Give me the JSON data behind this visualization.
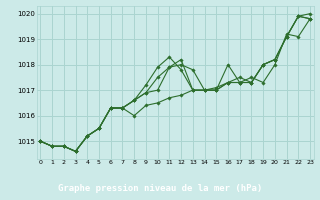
{
  "bg_color": "#cceae8",
  "grid_color": "#aad4d0",
  "line_color": "#2d6e2d",
  "marker_color": "#2d6e2d",
  "xlabel": "Graphe pression niveau de la mer (hPa)",
  "xlabel_bg": "#2d6e2d",
  "xlabel_fg": "#ffffff",
  "xlim": [
    -0.3,
    23.3
  ],
  "ylim": [
    1014.3,
    1020.3
  ],
  "yticks": [
    1015,
    1016,
    1017,
    1018,
    1019,
    1020
  ],
  "xticks": [
    0,
    1,
    2,
    3,
    4,
    5,
    6,
    7,
    8,
    9,
    10,
    11,
    12,
    13,
    14,
    15,
    16,
    17,
    18,
    19,
    20,
    21,
    22,
    23
  ],
  "series": [
    [
      1015.0,
      1014.8,
      1014.8,
      1014.6,
      1015.2,
      1015.5,
      1016.3,
      1016.3,
      1016.6,
      1017.2,
      1017.9,
      1018.3,
      1017.8,
      1017.0,
      1017.0,
      1017.1,
      1017.3,
      1017.5,
      1017.3,
      1018.0,
      1018.2,
      1019.1,
      1019.9,
      1020.0
    ],
    [
      1015.0,
      1014.8,
      1014.8,
      1014.6,
      1015.2,
      1015.5,
      1016.3,
      1016.3,
      1016.6,
      1016.9,
      1017.5,
      1017.9,
      1018.0,
      1017.8,
      1017.0,
      1017.0,
      1018.0,
      1017.3,
      1017.5,
      1017.3,
      1018.0,
      1019.2,
      1019.1,
      1019.8
    ],
    [
      1015.0,
      1014.8,
      1014.8,
      1014.6,
      1015.2,
      1015.5,
      1016.3,
      1016.3,
      1016.6,
      1016.9,
      1017.0,
      1017.9,
      1018.2,
      1017.0,
      1017.0,
      1017.0,
      1017.3,
      1017.3,
      1017.3,
      1018.0,
      1018.2,
      1019.1,
      1019.9,
      1019.8
    ],
    [
      1015.0,
      1014.8,
      1014.8,
      1014.6,
      1015.2,
      1015.5,
      1016.3,
      1016.3,
      1016.0,
      1016.4,
      1016.5,
      1016.7,
      1016.8,
      1017.0,
      1017.0,
      1017.0,
      1017.3,
      1017.3,
      1017.3,
      1018.0,
      1018.2,
      1019.1,
      1019.9,
      1019.8
    ]
  ]
}
